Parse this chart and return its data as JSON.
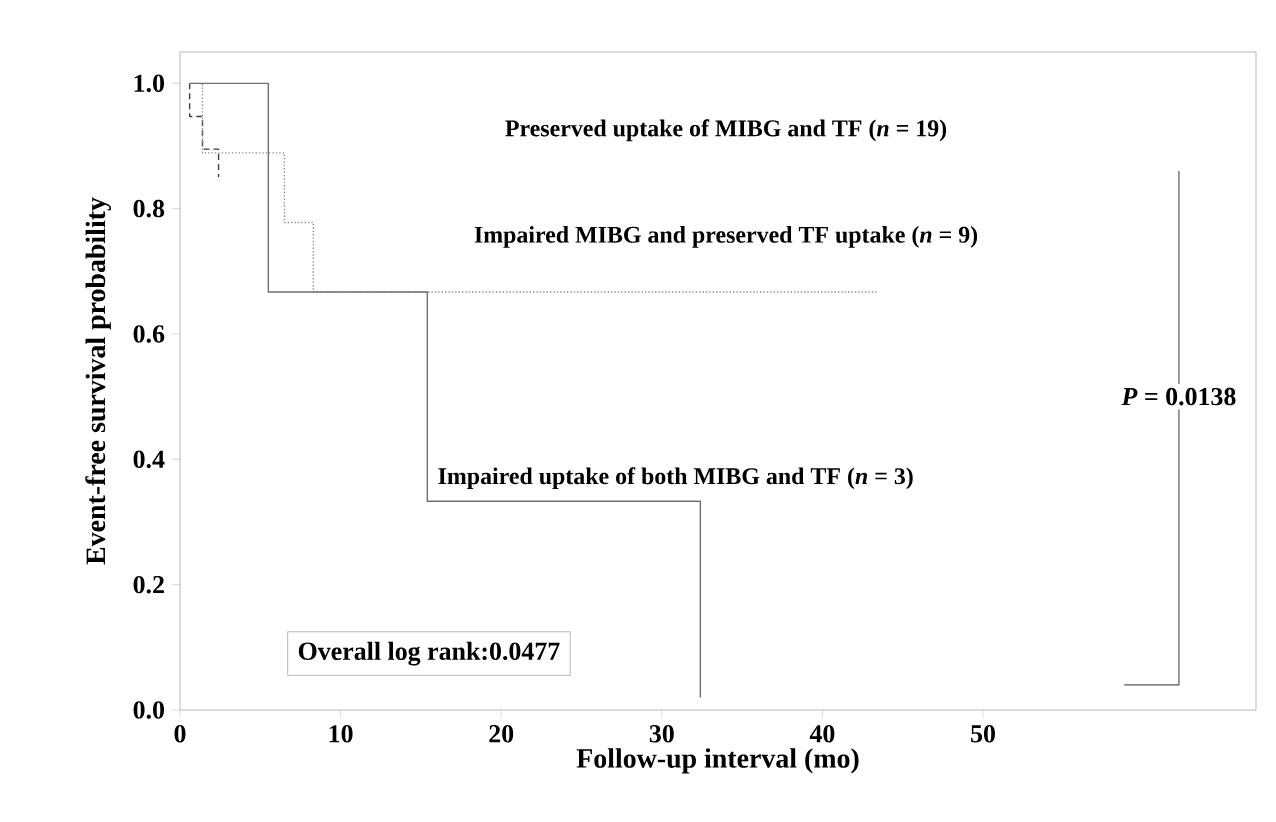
{
  "chart_data": {
    "type": "line",
    "xlabel": "Follow-up interval (mo)",
    "ylabel": "Event-free survival probability",
    "xlim": [
      0,
      67
    ],
    "ylim": [
      0,
      1.05
    ],
    "xticks": [
      0,
      10,
      20,
      30,
      40,
      50
    ],
    "yticks": [
      {
        "value": 0,
        "label": "0.0"
      },
      {
        "value": 0.2,
        "label": "0.2"
      },
      {
        "value": 0.4,
        "label": "0.4"
      },
      {
        "value": 0.6,
        "label": "0.6"
      },
      {
        "value": 0.8,
        "label": "0.8"
      },
      {
        "value": 1,
        "label": "1.0"
      }
    ],
    "series": [
      {
        "color": "#404040",
        "line_style": "dashed",
        "x": [
          0.6,
          0.6,
          1.4,
          1.4,
          2.4,
          2.4
        ],
        "values": [
          1,
          0.947,
          0.947,
          0.895,
          0.895,
          0.85
        ]
      },
      {
        "color": "#909090",
        "line_style": "dotted",
        "x": [
          0.6,
          1.4,
          1.4,
          6.5,
          6.5,
          8.3,
          8.3,
          43.4
        ],
        "values": [
          1,
          1,
          0.889,
          0.889,
          0.778,
          0.778,
          0.667,
          0.667
        ]
      },
      {
        "color": "#707070",
        "line_style": "solid",
        "x": [
          0.6,
          5.5,
          5.5,
          15.4,
          15.4,
          32.4,
          32.4
        ],
        "values": [
          1,
          1,
          0.667,
          0.667,
          0.333,
          0.333,
          0.02
        ]
      }
    ],
    "annotations": [
      "Preserved uptake of MIBG and TF (*n* = 19)",
      "Impaired MIBG and preserved TF uptake (*n* = 9)",
      "Impaired uptake of both MIBG and TF (*n* = 3)",
      "Overall log rank:0.0477",
      "*P* = 0.0138"
    ]
  }
}
